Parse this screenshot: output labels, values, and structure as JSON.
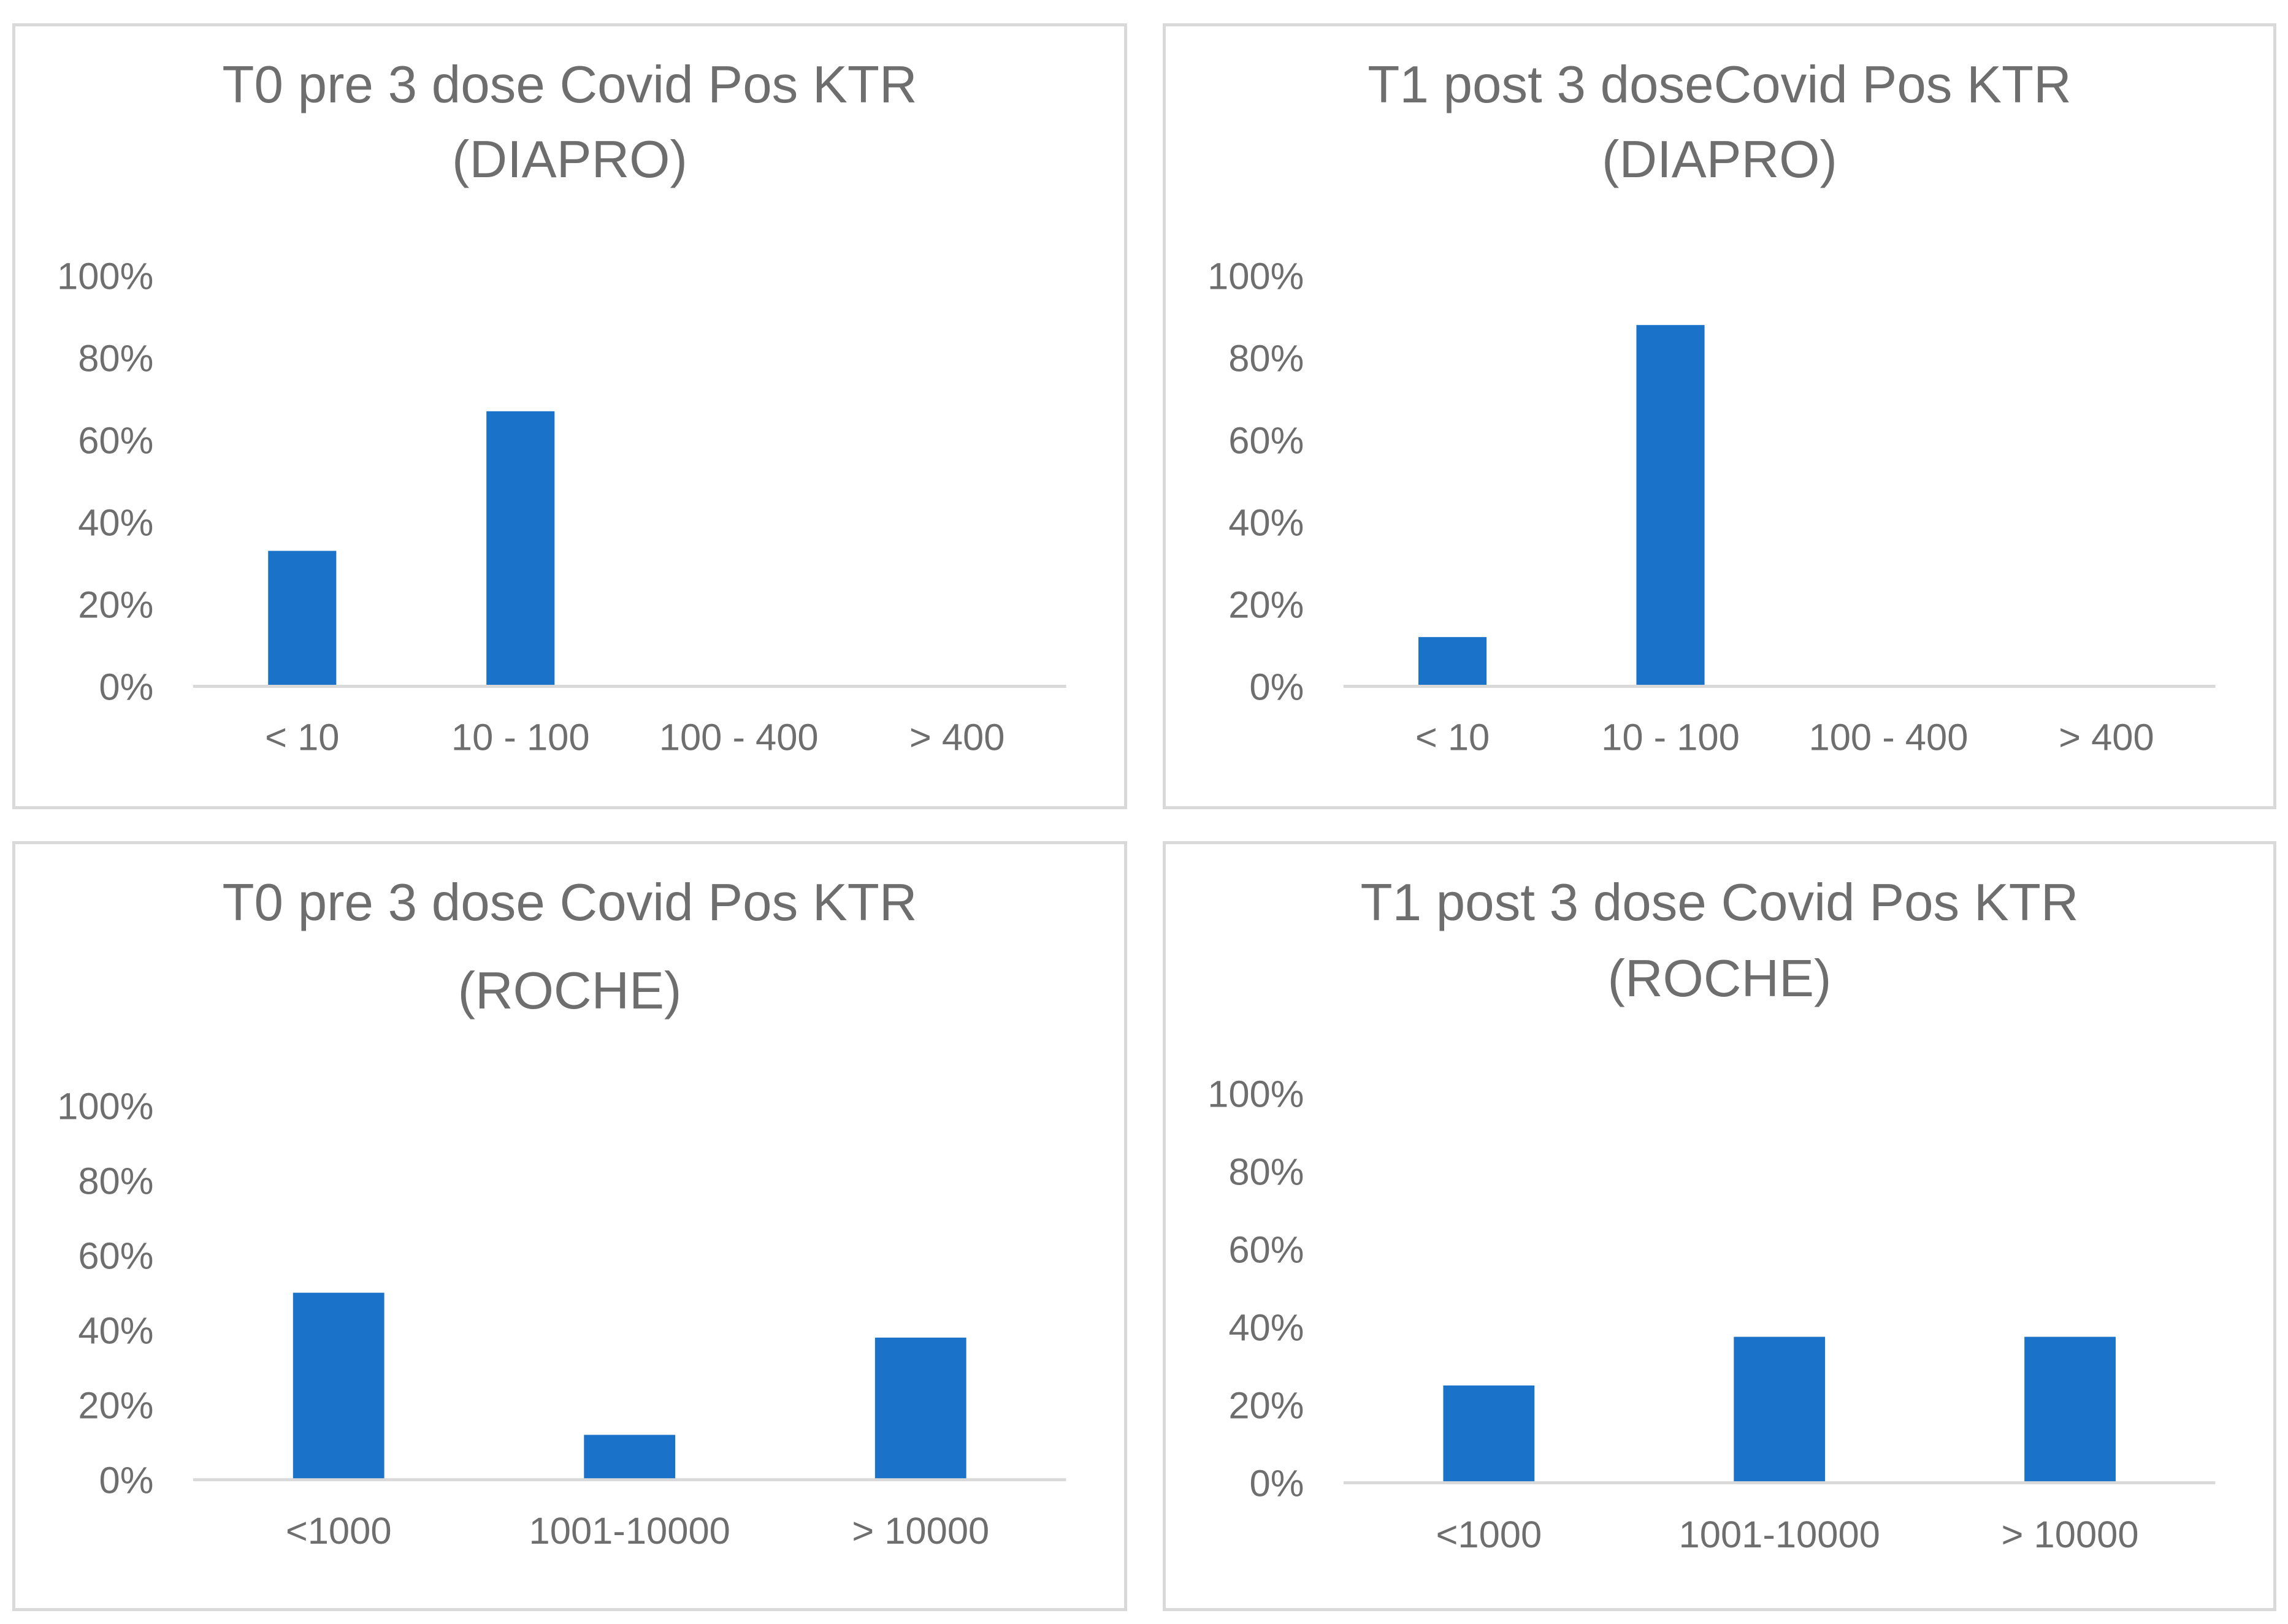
{
  "chart_data": [
    {
      "type": "bar",
      "title": "T0 pre 3 dose Covid Pos  KTR (DIAPRO)",
      "title_lines": [
        "T0 pre 3 dose Covid Pos  KTR",
        "(DIAPRO)"
      ],
      "categories": [
        "< 10",
        "10 - 100",
        "100 - 400",
        "> 400"
      ],
      "values": [
        0.33,
        0.67,
        0,
        0
      ],
      "ylim": [
        0,
        1
      ],
      "y_ticks": [
        "100%",
        "80%",
        "60%",
        "40%",
        "20%",
        "0%"
      ],
      "y_tick_values": [
        1,
        0.8,
        0.6,
        0.4,
        0.2,
        0
      ],
      "xlabel": "",
      "ylabel": "",
      "grid": false,
      "color": "#1a73c8"
    },
    {
      "type": "bar",
      "title": "T1 post 3 doseCovid Pos  KTR (DIAPRO)",
      "title_lines": [
        "T1 post 3 doseCovid Pos  KTR",
        "(DIAPRO)"
      ],
      "categories": [
        "< 10",
        "10 - 100",
        "100 - 400",
        "> 400"
      ],
      "values": [
        0.12,
        0.88,
        0,
        0
      ],
      "ylim": [
        0,
        1
      ],
      "y_ticks": [
        "100%",
        "80%",
        "60%",
        "40%",
        "20%",
        "0%"
      ],
      "y_tick_values": [
        1,
        0.8,
        0.6,
        0.4,
        0.2,
        0
      ],
      "xlabel": "",
      "ylabel": "",
      "grid": false,
      "color": "#1a73c8"
    },
    {
      "type": "bar",
      "title": "T0 pre 3 dose Covid Pos KTR (ROCHE)",
      "title_lines": [
        "T0 pre 3 dose Covid Pos KTR",
        "(ROCHE)"
      ],
      "categories": [
        "<1000",
        "1001-10000",
        "> 10000"
      ],
      "values": [
        0.5,
        0.12,
        0.38
      ],
      "ylim": [
        0,
        1
      ],
      "y_ticks": [
        "100%",
        "80%",
        "60%",
        "40%",
        "20%",
        "0%"
      ],
      "y_tick_values": [
        1,
        0.8,
        0.6,
        0.4,
        0.2,
        0
      ],
      "xlabel": "",
      "ylabel": "",
      "grid": false,
      "color": "#1a73c8"
    },
    {
      "type": "bar",
      "title": "T1 post 3 dose Covid Pos KTR (ROCHE)",
      "title_lines": [
        "T1 post 3 dose Covid Pos KTR",
        "(ROCHE)"
      ],
      "categories": [
        "<1000",
        "1001-10000",
        "> 10000"
      ],
      "values": [
        0.25,
        0.375,
        0.375
      ],
      "ylim": [
        0,
        1
      ],
      "y_ticks": [
        "100%",
        "80%",
        "60%",
        "40%",
        "20%",
        "0%"
      ],
      "y_tick_values": [
        1,
        0.8,
        0.6,
        0.4,
        0.2,
        0
      ],
      "xlabel": "",
      "ylabel": "",
      "grid": false,
      "color": "#1a73c8"
    }
  ],
  "colors": {
    "bar": "#1a73c8",
    "axis_line": "#d9d9d9",
    "text": "#6e6e6e",
    "panel_border": "#d9d9d9"
  }
}
